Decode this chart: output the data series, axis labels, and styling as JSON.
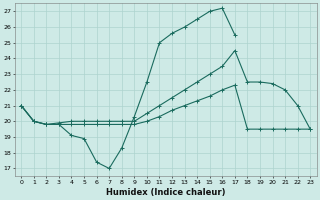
{
  "xlabel": "Humidex (Indice chaleur)",
  "bg_color": "#ceeae6",
  "grid_color": "#aed4cf",
  "line_color": "#1a6b5e",
  "xlim": [
    -0.5,
    23.5
  ],
  "ylim": [
    16.5,
    27.5
  ],
  "yticks": [
    17,
    18,
    19,
    20,
    21,
    22,
    23,
    24,
    25,
    26,
    27
  ],
  "xticks": [
    0,
    1,
    2,
    3,
    4,
    5,
    6,
    7,
    8,
    9,
    10,
    11,
    12,
    13,
    14,
    15,
    16,
    17,
    18,
    19,
    20,
    21,
    22,
    23
  ],
  "line1_x": [
    0,
    1,
    2,
    3,
    4,
    5,
    6,
    7,
    8,
    9,
    10,
    11,
    12,
    13,
    14,
    15,
    16,
    17
  ],
  "line1_y": [
    21.0,
    20.0,
    19.8,
    19.8,
    19.1,
    18.9,
    17.4,
    17.0,
    18.3,
    20.3,
    22.5,
    25.0,
    25.6,
    26.0,
    26.5,
    27.0,
    27.2,
    25.5
  ],
  "line2_x": [
    0,
    1,
    2,
    3,
    4,
    5,
    6,
    7,
    8,
    9,
    10,
    11,
    12,
    13,
    14,
    15,
    16,
    17,
    18,
    19,
    20,
    21,
    22,
    23
  ],
  "line2_y": [
    21.0,
    20.0,
    19.8,
    19.9,
    20.0,
    20.0,
    20.0,
    20.0,
    20.0,
    20.0,
    20.5,
    21.0,
    21.5,
    22.0,
    22.5,
    23.0,
    23.5,
    24.5,
    22.5,
    22.5,
    22.4,
    22.0,
    21.0,
    19.5
  ],
  "line3_x": [
    0,
    1,
    2,
    3,
    4,
    5,
    6,
    7,
    8,
    9,
    10,
    11,
    12,
    13,
    14,
    15,
    16,
    17,
    18,
    19,
    20,
    21,
    22,
    23
  ],
  "line3_y": [
    21.0,
    20.0,
    19.8,
    19.8,
    19.8,
    19.8,
    19.8,
    19.8,
    19.8,
    19.8,
    20.0,
    20.3,
    20.7,
    21.0,
    21.3,
    21.6,
    22.0,
    22.3,
    19.5,
    19.5,
    19.5,
    19.5,
    19.5,
    19.5
  ]
}
